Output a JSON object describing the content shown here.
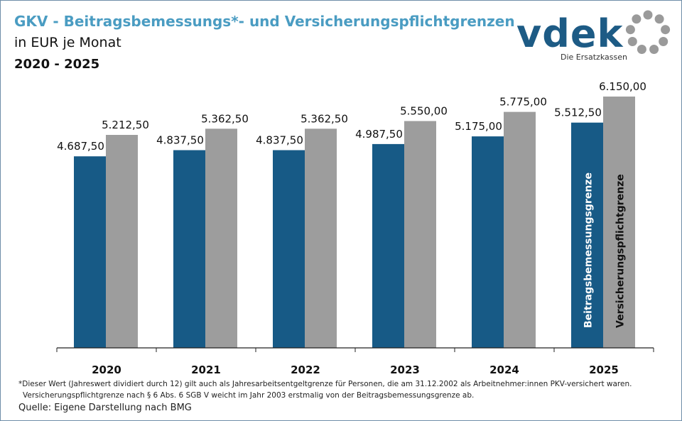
{
  "header": {
    "title": "GKV - Beitragsbemessungs*- und Versicherungspflichtgrenzen",
    "subtitle": "in EUR je Monat",
    "years": "2020 - 2025"
  },
  "logo": {
    "wordmark": "vdek",
    "tagline": "Die Ersatzkassen",
    "color": "#1d5b85",
    "ring_color": "#9a9a9a"
  },
  "chart_data": {
    "type": "bar",
    "categories": [
      "2020",
      "2021",
      "2022",
      "2023",
      "2024",
      "2025"
    ],
    "series": [
      {
        "name": "Beitragsbemessungsgrenze",
        "color": "#175a86",
        "values": [
          4687.5,
          4837.5,
          4837.5,
          4987.5,
          5175.0,
          5512.5
        ],
        "labels": [
          "4.687,50",
          "4.837,50",
          "4.837,50",
          "4.987,50",
          "5.175,00",
          "5.512,50"
        ]
      },
      {
        "name": "Versicherungspflichtgrenze",
        "color": "#9d9d9d",
        "values": [
          5212.5,
          5362.5,
          5362.5,
          5550.0,
          5775.0,
          6150.0
        ],
        "labels": [
          "5.212,50",
          "5.362,50",
          "5.362,50",
          "5.550,00",
          "5.775,00",
          "6.150,00"
        ]
      }
    ],
    "ylim": [
      0,
      7000
    ],
    "grid": false,
    "legend": "inside-last-bars"
  },
  "footnote": {
    "line1": "*Dieser Wert (Jahreswert dividiert durch 12) gilt auch als Jahresarbeitsentgeltgrenze für Personen, die am 31.12.2002 als Arbeitnehmer:innen PKV-versichert waren.",
    "line2": "Versicherungspflichtgrenze nach § 6 Abs. 6 SGB V weicht im Jahr 2003 erstmalig von der Beitragsbemessungsgrenze ab."
  },
  "source": "Quelle: Eigene Darstellung nach BMG"
}
